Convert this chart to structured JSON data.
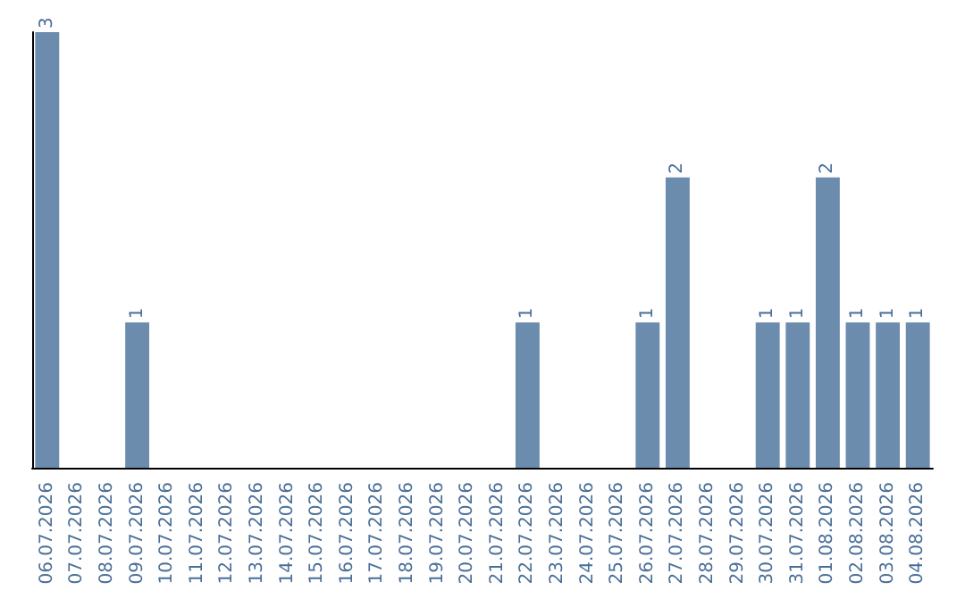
{
  "chart_data": {
    "type": "bar",
    "categories": [
      "06.07.2026",
      "07.07.2026",
      "08.07.2026",
      "09.07.2026",
      "10.07.2026",
      "11.07.2026",
      "12.07.2026",
      "13.07.2026",
      "14.07.2026",
      "15.07.2026",
      "16.07.2026",
      "17.07.2026",
      "18.07.2026",
      "19.07.2026",
      "20.07.2026",
      "21.07.2026",
      "22.07.2026",
      "23.07.2026",
      "24.07.2026",
      "25.07.2026",
      "26.07.2026",
      "27.07.2026",
      "28.07.2026",
      "29.07.2026",
      "30.07.2026",
      "31.07.2026",
      "01.08.2026",
      "02.08.2026",
      "03.08.2026",
      "04.08.2026"
    ],
    "values": [
      3,
      0,
      0,
      1,
      0,
      0,
      0,
      0,
      0,
      0,
      0,
      0,
      0,
      0,
      0,
      0,
      1,
      0,
      0,
      0,
      1,
      2,
      0,
      0,
      1,
      1,
      2,
      1,
      1,
      1
    ],
    "color": "#6b8cad",
    "value_labels": [
      "3",
      null,
      null,
      "1",
      null,
      null,
      null,
      null,
      null,
      null,
      null,
      null,
      null,
      null,
      null,
      null,
      "1",
      null,
      null,
      null,
      "1",
      "2",
      null,
      null,
      "1",
      "1",
      "2",
      "1",
      "1",
      "1"
    ],
    "grid": false
  }
}
